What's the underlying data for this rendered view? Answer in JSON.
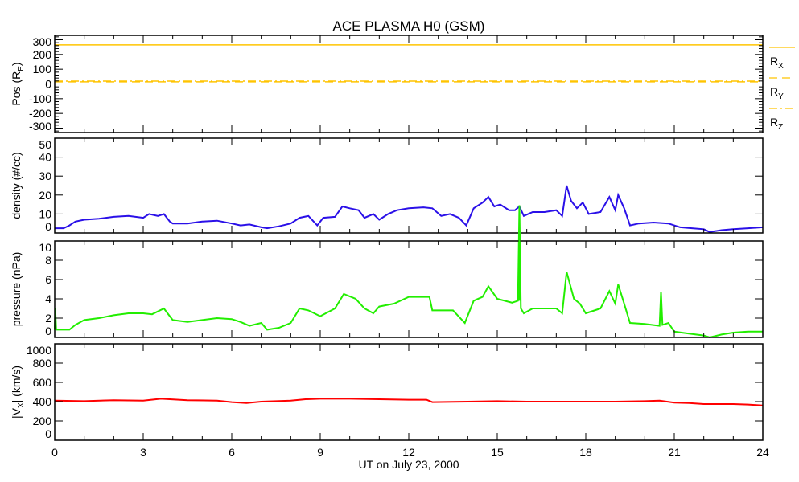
{
  "chart_data": {
    "type": "line",
    "title": "ACE PLASMA H0 (GSM)",
    "xlabel": "UT on July 23, 2000",
    "xlim": [
      0,
      24
    ],
    "xticks": [
      0,
      3,
      6,
      9,
      12,
      15,
      18,
      21,
      24
    ],
    "panels": [
      {
        "id": "position",
        "ylabel": {
          "pre": "Pos (R",
          "sub": "E",
          "post": ")"
        },
        "ylim": [
          -330,
          330
        ],
        "yticks": [
          -300,
          -200,
          -100,
          0,
          100,
          200,
          300
        ],
        "yminor": 20,
        "zero_line": true,
        "series": [
          {
            "name": "Rx",
            "label": {
              "pre": "R",
              "sub": "X"
            },
            "color": "#ffc400",
            "style": "solid",
            "x": [
              0,
              24
            ],
            "y": [
              265,
              265
            ]
          },
          {
            "name": "Ry",
            "label": {
              "pre": "R",
              "sub": "Y"
            },
            "color": "#ffc400",
            "style": "dash",
            "x": [
              0,
              24
            ],
            "y": [
              14,
              14
            ]
          },
          {
            "name": "Rz",
            "label": {
              "pre": "R",
              "sub": "Z"
            },
            "color": "#ffc400",
            "style": "dashdot",
            "x": [
              0,
              24
            ],
            "y": [
              19,
              19
            ]
          }
        ]
      },
      {
        "id": "density",
        "ylabel": {
          "pre": "density (#/cc)",
          "sub": "",
          "post": ""
        },
        "ylim": [
          0,
          50
        ],
        "yticks": [
          0,
          10,
          20,
          30,
          40,
          50
        ],
        "series": [
          {
            "name": "density",
            "color": "#2a10e8",
            "style": "solid",
            "x": [
              0,
              0.3,
              0.5,
              0.7,
              1,
              1.5,
              2,
              2.5,
              3,
              3.2,
              3.5,
              3.7,
              3.9,
              4,
              4.5,
              5,
              5.5,
              6,
              6.3,
              6.6,
              7,
              7.2,
              7.6,
              8,
              8.3,
              8.6,
              8.9,
              9.1,
              9.5,
              9.75,
              10,
              10.3,
              10.5,
              10.8,
              11,
              11.3,
              11.6,
              12,
              12.5,
              12.8,
              13.1,
              13.4,
              13.7,
              13.95,
              14.2,
              14.5,
              14.7,
              14.9,
              15.1,
              15.4,
              15.6,
              15.75,
              15.9,
              16.2,
              16.6,
              17,
              17.2,
              17.35,
              17.5,
              17.7,
              17.9,
              18.1,
              18.5,
              18.8,
              19,
              19.1,
              19.3,
              19.5,
              19.8,
              20.3,
              20.8,
              21.2,
              21.6,
              22,
              22.2,
              22.6,
              23,
              23.5,
              24
            ],
            "y": [
              2.5,
              2.5,
              4,
              6,
              7,
              7.5,
              8.5,
              9,
              8,
              10,
              9,
              10,
              6,
              5,
              5,
              6,
              6.5,
              5,
              4,
              4.5,
              3,
              2.5,
              3.5,
              5,
              8,
              9,
              4,
              8,
              8.5,
              14,
              13,
              12,
              8,
              10,
              7,
              10,
              12,
              13,
              13.5,
              13,
              9,
              10,
              8,
              4,
              13,
              16,
              19,
              14,
              15,
              12,
              12,
              14,
              9,
              11,
              11,
              12,
              9,
              25,
              17,
              13,
              16,
              10,
              11,
              19,
              12,
              20,
              13,
              4,
              5,
              5.5,
              5,
              3,
              2.5,
              2,
              0.5,
              1.5,
              2,
              2.5,
              3
            ]
          },
          {
            "name": "pressure-overflow",
            "color": "#22ee00",
            "style": "solid",
            "overflow_of": "pressure"
          }
        ]
      },
      {
        "id": "pressure",
        "ylabel": {
          "pre": "pressure (nPa)",
          "sub": "",
          "post": ""
        },
        "ylim": [
          0,
          10
        ],
        "yticks": [
          0,
          2,
          4,
          6,
          8,
          10
        ],
        "series": [
          {
            "name": "pressure",
            "color": "#22ee00",
            "style": "solid",
            "x": [
              0,
              0.02,
              0.05,
              0.5,
              0.7,
              1,
              1.5,
              2,
              2.5,
              3,
              3.3,
              3.7,
              3.9,
              4,
              4.5,
              5,
              5.5,
              6,
              6.3,
              6.6,
              7,
              7.2,
              7.6,
              8,
              8.3,
              8.6,
              9,
              9.5,
              9.8,
              10.2,
              10.5,
              10.8,
              11,
              11.5,
              12,
              12.7,
              12.8,
              13.5,
              13.9,
              14.2,
              14.5,
              14.7,
              15,
              15.5,
              15.7,
              15.75,
              15.8,
              15.9,
              16.2,
              16.6,
              17,
              17.2,
              17.35,
              17.6,
              17.8,
              18,
              18.5,
              18.8,
              19,
              19.1,
              19.3,
              19.5,
              20,
              20.5,
              20.55,
              20.6,
              20.8,
              21,
              21.5,
              22,
              22.2,
              22.6,
              23,
              23.5,
              24
            ],
            "y": [
              0.8,
              3,
              0.8,
              0.8,
              1.3,
              1.8,
              2,
              2.3,
              2.5,
              2.5,
              2.4,
              3,
              2.2,
              1.8,
              1.6,
              1.8,
              2,
              1.9,
              1.6,
              1.2,
              1.5,
              0.8,
              1,
              1.5,
              3,
              2.8,
              2.2,
              3,
              4.5,
              4,
              3,
              2.5,
              3.2,
              3.5,
              4.2,
              4.2,
              2.8,
              2.8,
              1.5,
              3.8,
              4.2,
              5.3,
              4,
              3.6,
              3.8,
              13.7,
              3,
              2.5,
              3,
              3,
              3,
              2.5,
              6.8,
              4,
              3.5,
              2.5,
              3,
              4.8,
              3.5,
              5.5,
              3.5,
              1.5,
              1.4,
              1.2,
              4.7,
              1.3,
              1.5,
              0.6,
              0.4,
              0.2,
              0,
              0.3,
              0.5,
              0.6,
              0.6
            ]
          }
        ]
      },
      {
        "id": "vx",
        "ylabel": {
          "pre": "|V",
          "sub": "X",
          "post": "| (km/s)"
        },
        "ylim": [
          0,
          1000
        ],
        "yticks": [
          0,
          200,
          400,
          600,
          800,
          1000
        ],
        "series": [
          {
            "name": "|Vx|",
            "color": "#ff0000",
            "style": "solid",
            "x": [
              0,
              1,
              2,
              3,
              3.6,
              4.5,
              5.5,
              6,
              6.5,
              7,
              8,
              8.5,
              9,
              10,
              11,
              12,
              12.6,
              12.8,
              14,
              15,
              16,
              17,
              18,
              19,
              20,
              20.5,
              21,
              21.5,
              22,
              23,
              23.5,
              24
            ],
            "y": [
              410,
              405,
              415,
              410,
              430,
              415,
              410,
              395,
              385,
              400,
              410,
              425,
              430,
              430,
              425,
              420,
              420,
              395,
              400,
              405,
              400,
              400,
              400,
              400,
              405,
              410,
              390,
              385,
              375,
              375,
              370,
              360
            ]
          }
        ]
      }
    ]
  }
}
